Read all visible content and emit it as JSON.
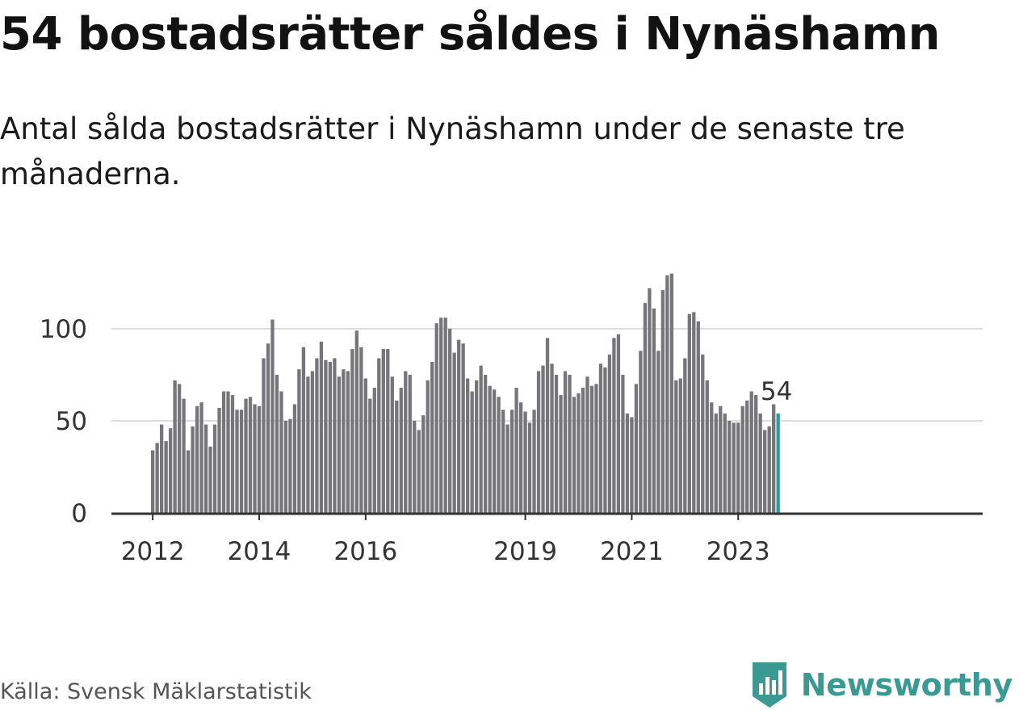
{
  "title": "54 bostadsrätter såldes i Nynäshamn",
  "subtitle": "Antal sålda bostadsrätter i Nynäshamn under de senaste tre månaderna.",
  "source": "Källa: Svensk Mäklarstatistik",
  "brand": "Newsworthy",
  "colors": {
    "bar": "#76757a",
    "highlight": "#1aa5a0",
    "grid": "#dddddd",
    "axis": "#333333",
    "brand": "#3a9a93"
  },
  "chart_data": {
    "type": "bar",
    "title": "54 bostadsrätter såldes i Nynäshamn",
    "xlabel": "",
    "ylabel": "",
    "ylim": [
      0,
      130
    ],
    "yticks": [
      0,
      50,
      100
    ],
    "grid": true,
    "start": "2012-01",
    "interval": "month",
    "xtick_labels": [
      {
        "label": "2012",
        "index": 0
      },
      {
        "label": "2014",
        "index": 24
      },
      {
        "label": "2016",
        "index": 48
      },
      {
        "label": "2019",
        "index": 84
      },
      {
        "label": "2021",
        "index": 108
      },
      {
        "label": "2023",
        "index": 132
      }
    ],
    "highlight_label": "54",
    "values": [
      34,
      38,
      48,
      39,
      46,
      72,
      70,
      62,
      34,
      47,
      58,
      60,
      48,
      36,
      48,
      57,
      66,
      66,
      64,
      56,
      56,
      62,
      63,
      59,
      58,
      84,
      92,
      105,
      75,
      66,
      50,
      51,
      59,
      78,
      90,
      74,
      77,
      84,
      93,
      83,
      82,
      84,
      74,
      78,
      77,
      89,
      99,
      90,
      73,
      62,
      68,
      84,
      89,
      89,
      74,
      61,
      68,
      77,
      75,
      50,
      45,
      53,
      72,
      82,
      103,
      106,
      106,
      100,
      87,
      94,
      92,
      73,
      66,
      72,
      80,
      75,
      69,
      67,
      63,
      56,
      48,
      56,
      68,
      60,
      55,
      49,
      56,
      77,
      80,
      95,
      81,
      75,
      64,
      77,
      75,
      63,
      65,
      68,
      74,
      69,
      70,
      81,
      79,
      86,
      95,
      97,
      75,
      54,
      52,
      70,
      88,
      114,
      122,
      111,
      88,
      121,
      129,
      130,
      72,
      73,
      84,
      108,
      109,
      104,
      86,
      72,
      60,
      54,
      58,
      54,
      50,
      49,
      49,
      58,
      61,
      66,
      64,
      54,
      45,
      47,
      59,
      54
    ]
  }
}
